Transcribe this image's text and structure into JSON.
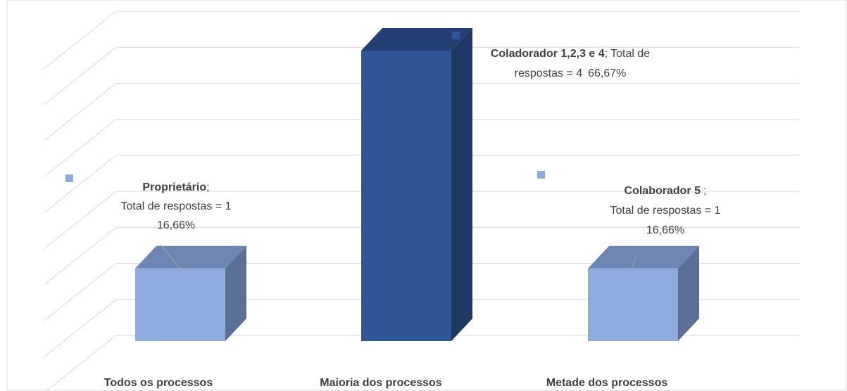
{
  "chart_data": {
    "type": "bar3d",
    "categories": [
      "Todos os processos",
      "Maioria dos processos",
      "Metade dos processos"
    ],
    "values": [
      16.66,
      66.67,
      16.66
    ],
    "value_labels": [
      "16,66%",
      "66,67%",
      "16,66%"
    ],
    "label_names": [
      "Proprietário",
      "Coladorador 1,2,3 e 4",
      "Colaborador 5"
    ],
    "label_separator": ";",
    "label_lines": [
      [
        "Total de respostas = 1"
      ],
      [
        "Total de",
        "respostas = 4"
      ],
      [
        "Total de respostas = 1"
      ]
    ],
    "colors": [
      "#8faadc",
      "#2f5597",
      "#8faadc"
    ],
    "ylim": [
      0,
      75
    ],
    "yticks": [
      0,
      8.33,
      16.67,
      25,
      33.33,
      41.67,
      50,
      58.33,
      66.67,
      75
    ],
    "grid": true
  }
}
